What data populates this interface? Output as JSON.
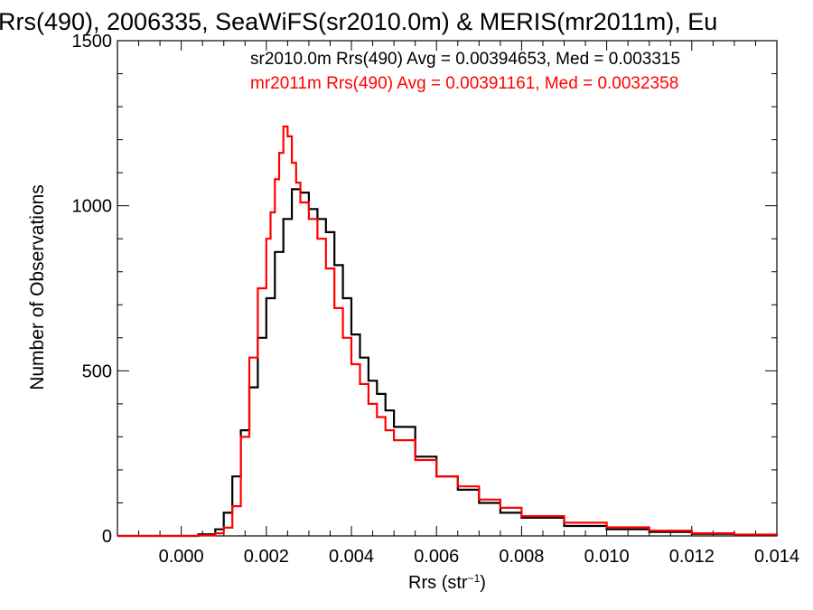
{
  "chart_data": {
    "type": "line",
    "title": "Rrs(490), 2006335, SeaWiFS(sr2010.0m) & MERIS(mr2011m), Eu",
    "xlabel": "Rrs (str",
    "xlabel_sup": "−1",
    "xlabel_close": ")",
    "ylabel": "Number of Observations",
    "xlim": [
      -0.0015,
      0.014
    ],
    "ylim": [
      0,
      1500
    ],
    "xticks": [
      0.0,
      0.002,
      0.004,
      0.006,
      0.008,
      0.01,
      0.012,
      0.014
    ],
    "xtick_labels": [
      "0.000",
      "0.002",
      "0.004",
      "0.006",
      "0.008",
      "0.010",
      "0.012",
      "0.014"
    ],
    "yticks": [
      0,
      500,
      1000,
      1500
    ],
    "ytick_labels": [
      "0",
      "500",
      "1000",
      "1500"
    ],
    "grid": false,
    "legend_position": "top-right",
    "series": [
      {
        "name": "sr2010.0m Rrs(490) Avg = 0.00394653, Med = 0.003315",
        "color": "#000000",
        "x": [
          -0.0015,
          0.0,
          0.0004,
          0.0008,
          0.001,
          0.0012,
          0.0014,
          0.0016,
          0.0018,
          0.002,
          0.0022,
          0.0024,
          0.0026,
          0.0028,
          0.003,
          0.0032,
          0.0034,
          0.0036,
          0.0038,
          0.004,
          0.0042,
          0.0044,
          0.0046,
          0.0048,
          0.005,
          0.0055,
          0.006,
          0.0065,
          0.007,
          0.0075,
          0.008,
          0.009,
          0.01,
          0.011,
          0.012,
          0.013,
          0.014
        ],
        "y": [
          0,
          0,
          5,
          20,
          70,
          180,
          320,
          450,
          600,
          720,
          860,
          960,
          1050,
          1040,
          990,
          960,
          920,
          820,
          720,
          610,
          540,
          470,
          430,
          380,
          330,
          240,
          180,
          140,
          100,
          70,
          55,
          30,
          20,
          12,
          6,
          3,
          1
        ]
      },
      {
        "name": "mr2011m Rrs(490) Avg = 0.00391161, Med = 0.0032358",
        "color": "#ff0000",
        "x": [
          -0.0015,
          0.0,
          0.0004,
          0.0008,
          0.001,
          0.0012,
          0.0014,
          0.0016,
          0.0018,
          0.002,
          0.0021,
          0.0022,
          0.0023,
          0.0024,
          0.0025,
          0.0026,
          0.0027,
          0.0028,
          0.003,
          0.0032,
          0.0034,
          0.0036,
          0.0038,
          0.004,
          0.0042,
          0.0044,
          0.0046,
          0.0048,
          0.005,
          0.0055,
          0.006,
          0.0065,
          0.007,
          0.0075,
          0.008,
          0.009,
          0.01,
          0.011,
          0.012,
          0.013,
          0.014
        ],
        "y": [
          0,
          0,
          2,
          8,
          25,
          90,
          300,
          540,
          750,
          900,
          980,
          1080,
          1160,
          1240,
          1210,
          1130,
          1070,
          1010,
          960,
          900,
          810,
          690,
          600,
          520,
          460,
          400,
          360,
          320,
          290,
          230,
          180,
          150,
          110,
          85,
          60,
          40,
          26,
          16,
          8,
          4,
          2
        ]
      }
    ]
  }
}
